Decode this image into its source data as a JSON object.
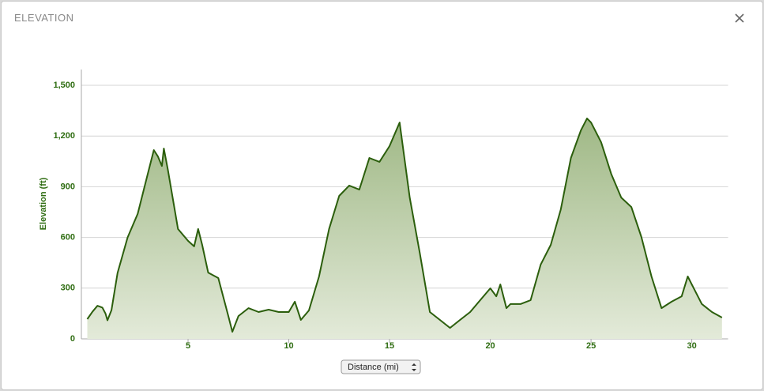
{
  "header": {
    "title": "ELEVATION"
  },
  "chart_data": {
    "type": "area",
    "ylabel": "Elevation (ft)",
    "xlabel": "Distance (mi)",
    "color": "#2b5e0c",
    "fill": "#a9bf8f",
    "grid": true,
    "xlim": [
      0,
      31.8
    ],
    "ylim": [
      0,
      1500
    ],
    "xticks": [
      5,
      10,
      15,
      20,
      25,
      30
    ],
    "yticks": [
      0,
      300,
      600,
      900,
      {
        "value": 1200,
        "label": "1,200"
      },
      {
        "value": 1500,
        "label": "1,500"
      }
    ],
    "x": [
      0,
      0.25,
      0.5,
      0.75,
      0.9,
      1.0,
      1.2,
      1.5,
      2,
      2.5,
      3,
      3.3,
      3.5,
      3.7,
      3.8,
      4,
      4.5,
      5,
      5.3,
      5.5,
      5.7,
      6,
      6.5,
      7,
      7.2,
      7.5,
      8,
      8.5,
      9,
      9.5,
      10,
      10.3,
      10.6,
      11,
      11.5,
      12,
      12.5,
      13,
      13.5,
      14,
      14.5,
      15,
      15.5,
      16,
      16.5,
      17,
      17.5,
      18,
      18.5,
      19,
      19.5,
      20,
      20.3,
      20.5,
      20.8,
      21,
      21.5,
      22,
      22.5,
      23,
      23.5,
      24,
      24.5,
      24.8,
      25,
      25.5,
      26,
      26.5,
      27,
      27.5,
      28,
      28.5,
      29,
      29.5,
      29.8,
      30,
      30.5,
      31,
      31.5
    ],
    "values": [
      117,
      160,
      196,
      185,
      150,
      110,
      170,
      390,
      600,
      740,
      975,
      1117,
      1080,
      1023,
      1126,
      1000,
      650,
      580,
      547,
      650,
      556,
      392,
      360,
      135,
      42,
      135,
      182,
      159,
      173,
      159,
      159,
      220,
      112,
      168,
      369,
      650,
      846,
      907,
      883,
      1070,
      1047,
      1140,
      1280,
      836,
      509,
      159,
      112,
      65,
      112,
      159,
      229,
      299,
      252,
      322,
      182,
      206,
      206,
      229,
      439,
      556,
      766,
      1070,
      1234,
      1304,
      1280,
      1164,
      976,
      836,
      780,
      603,
      369,
      182,
      220,
      252,
      369,
      322,
      206,
      159,
      126
    ]
  }
}
